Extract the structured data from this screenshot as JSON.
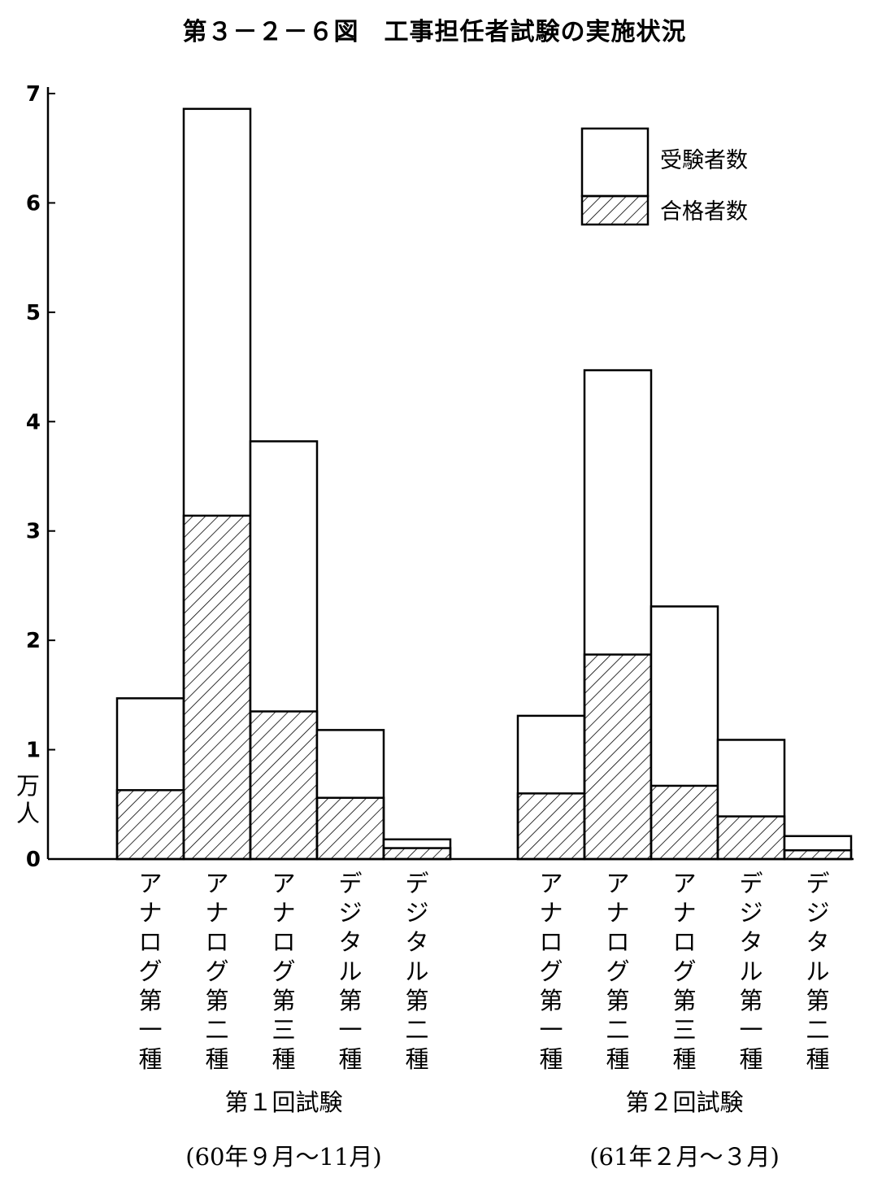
{
  "page": {
    "title": "第３－２－６図　工事担任者試験の実施状況"
  },
  "chart_data": {
    "type": "bar",
    "title": "第３－２－６図　工事担任者試験の実施状況",
    "ylabel": "万人",
    "ylim": [
      0,
      7
    ],
    "yticks": [
      "0",
      "1",
      "2",
      "3",
      "4",
      "5",
      "6",
      "7"
    ],
    "grid": false,
    "legend_position": "top-right",
    "series": [
      {
        "name": "受験者数",
        "pattern": "empty"
      },
      {
        "name": "合格者数",
        "pattern": "hatched"
      }
    ],
    "groups": [
      {
        "label": "第１回試験",
        "period": "(60年９月～11月)",
        "categories": [
          "アナログ第一種",
          "アナログ第二種",
          "アナログ第三種",
          "デジタル第一種",
          "デジタル第二種"
        ],
        "examinees": [
          1.47,
          6.86,
          3.82,
          1.18,
          0.18
        ],
        "passers": [
          0.63,
          3.14,
          1.35,
          0.56,
          0.1
        ]
      },
      {
        "label": "第２回試験",
        "period": "(61年２月～３月)",
        "categories": [
          "アナログ第一種",
          "アナログ第二種",
          "アナログ第三種",
          "デジタル第一種",
          "デジタル第二種"
        ],
        "examinees": [
          1.31,
          4.47,
          2.31,
          1.09,
          0.21
        ],
        "passers": [
          0.6,
          1.87,
          0.67,
          0.39,
          0.08
        ]
      }
    ]
  }
}
